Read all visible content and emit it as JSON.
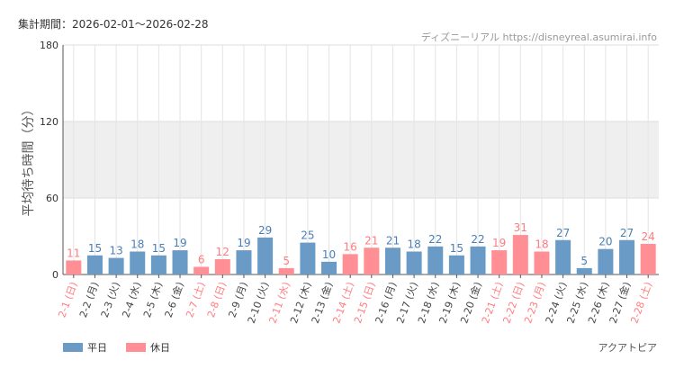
{
  "header": {
    "title": "集計期間：2026-02-01〜2026-02-28",
    "credit": "ディズニーリアル https://disneyreal.asumirai.info",
    "park": "アクアトピア"
  },
  "legend": {
    "weekday": "平日",
    "holiday": "休日"
  },
  "colors": {
    "weekday": "#6a9ac6",
    "holiday": "#ff8f94",
    "holiday_text": "#ff7b80",
    "weekday_text": "#4a7fb5"
  },
  "chart_data": {
    "type": "bar",
    "title": "",
    "ylabel": "平均待ち時間（分）",
    "ylim": [
      0,
      180
    ],
    "yticks": [
      0,
      60,
      120,
      180
    ],
    "grid": true,
    "categories": [
      "2-1 (日)",
      "2-2 (月)",
      "2-3 (火)",
      "2-4 (水)",
      "2-5 (木)",
      "2-6 (金)",
      "2-7 (土)",
      "2-8 (日)",
      "2-9 (月)",
      "2-10 (火)",
      "2-11 (水)",
      "2-12 (木)",
      "2-13 (金)",
      "2-14 (土)",
      "2-15 (日)",
      "2-16 (月)",
      "2-17 (火)",
      "2-18 (水)",
      "2-19 (木)",
      "2-20 (金)",
      "2-21 (土)",
      "2-22 (日)",
      "2-23 (月)",
      "2-24 (火)",
      "2-25 (水)",
      "2-26 (木)",
      "2-27 (金)",
      "2-28 (土)"
    ],
    "values": [
      11,
      15,
      13,
      18,
      15,
      19,
      6,
      12,
      19,
      29,
      5,
      25,
      10,
      16,
      21,
      21,
      18,
      22,
      15,
      22,
      19,
      31,
      18,
      27,
      5,
      20,
      27,
      24
    ],
    "holiday": [
      true,
      false,
      false,
      false,
      false,
      false,
      true,
      true,
      false,
      false,
      true,
      false,
      false,
      true,
      true,
      false,
      false,
      false,
      false,
      false,
      true,
      true,
      true,
      false,
      false,
      false,
      false,
      true
    ]
  }
}
